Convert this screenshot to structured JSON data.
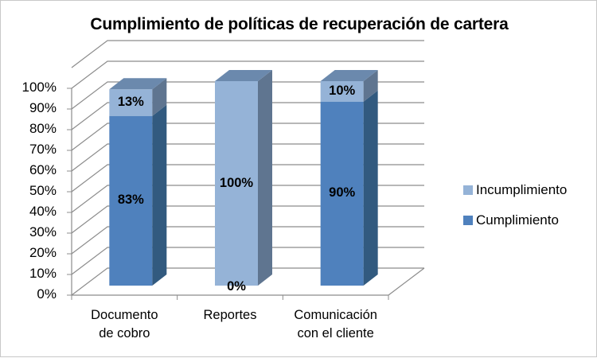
{
  "chart_data": {
    "type": "bar",
    "subtype": "3d-stacked-100",
    "title": "Cumplimiento de políticas de recuperación de cartera",
    "categories": [
      "Documento de cobro",
      "Reportes",
      "Comunicación con el cliente"
    ],
    "category_lines": [
      [
        "Documento",
        "de cobro"
      ],
      [
        "Reportes",
        ""
      ],
      [
        "Comunicación",
        "con el cliente"
      ]
    ],
    "series": [
      {
        "name": "Cumplimiento",
        "color": "#4f81bd",
        "values": [
          83,
          0,
          90
        ],
        "labels": [
          "83%",
          "0%",
          "90%"
        ]
      },
      {
        "name": "Incumplimiento",
        "color": "#95b3d7",
        "values": [
          13,
          100,
          10
        ],
        "labels": [
          "13%",
          "100%",
          "10%"
        ]
      }
    ],
    "yticks": [
      "0%",
      "10%",
      "20%",
      "30%",
      "40%",
      "50%",
      "60%",
      "70%",
      "80%",
      "90%",
      "100%"
    ],
    "ylim": [
      0,
      100
    ],
    "grid": true,
    "legend_position": "right",
    "legend": [
      "Incumplimiento",
      "Cumplimiento"
    ]
  }
}
